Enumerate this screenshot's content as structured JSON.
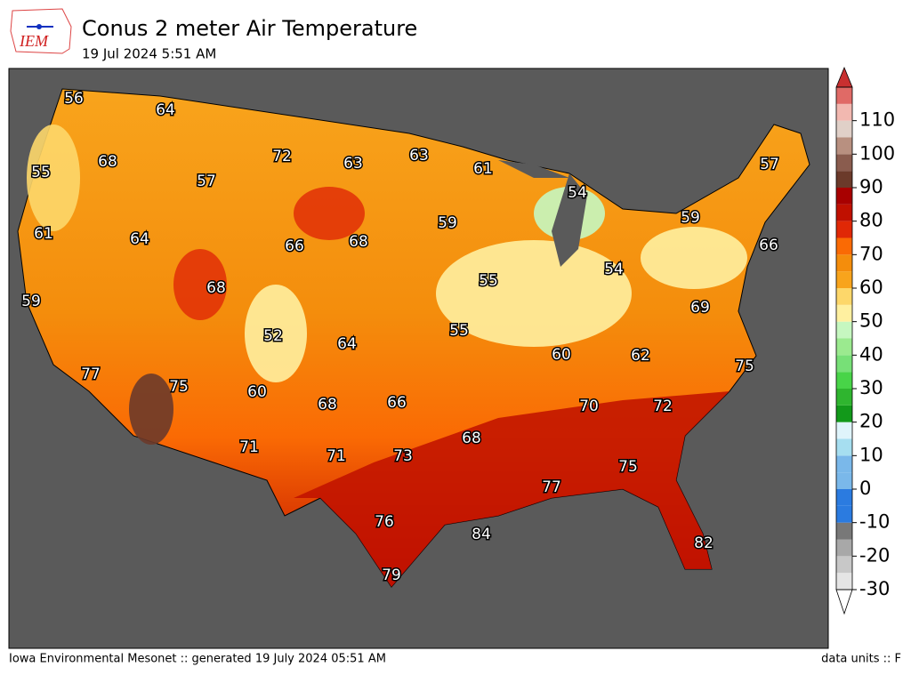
{
  "header": {
    "logo": "IEM",
    "title": "Conus 2 meter Air Temperature",
    "subtitle": "19 Jul 2024 5:51 AM"
  },
  "map": {
    "labels": [
      56,
      64,
      68,
      55,
      57,
      72,
      63,
      63,
      61,
      54,
      57,
      59,
      61,
      64,
      66,
      68,
      59,
      66,
      68,
      55,
      54,
      59,
      52,
      64,
      55,
      69,
      60,
      62,
      75,
      77,
      75,
      60,
      68,
      66,
      70,
      72,
      68,
      71,
      71,
      73,
      75,
      77,
      76,
      84,
      82,
      79
    ]
  },
  "colorbar": {
    "range": [
      -30,
      120
    ],
    "step": 5,
    "ticks": [
      -30,
      -20,
      -10,
      0,
      10,
      20,
      30,
      40,
      50,
      60,
      70,
      80,
      90,
      100,
      110
    ],
    "colors": [
      "#e5e5e5",
      "#c8c8c8",
      "#a8a8a8",
      "#787878",
      "#2b7be0",
      "#2b7be0",
      "#7ab8ea",
      "#7ab8ea",
      "#a6def0",
      "#dff4fb",
      "#12991a",
      "#2fb52f",
      "#48d448",
      "#77e077",
      "#9bea8f",
      "#c6f7c0",
      "#fff0a0",
      "#fdd76a",
      "#f8a41c",
      "#f48d0c",
      "#fa6a04",
      "#e02806",
      "#c01000",
      "#a80000",
      "#6b3a2a",
      "#8a5c4e",
      "#b89080",
      "#e0d0c8",
      "#f2b8b0",
      "#e06a66"
    ],
    "over_color": "#c83030",
    "under_color": "#ffffff"
  },
  "footer": {
    "left": "Iowa Environmental Mesonet :: generated 19 July 2024 05:51 AM",
    "right": "data units :: F"
  }
}
